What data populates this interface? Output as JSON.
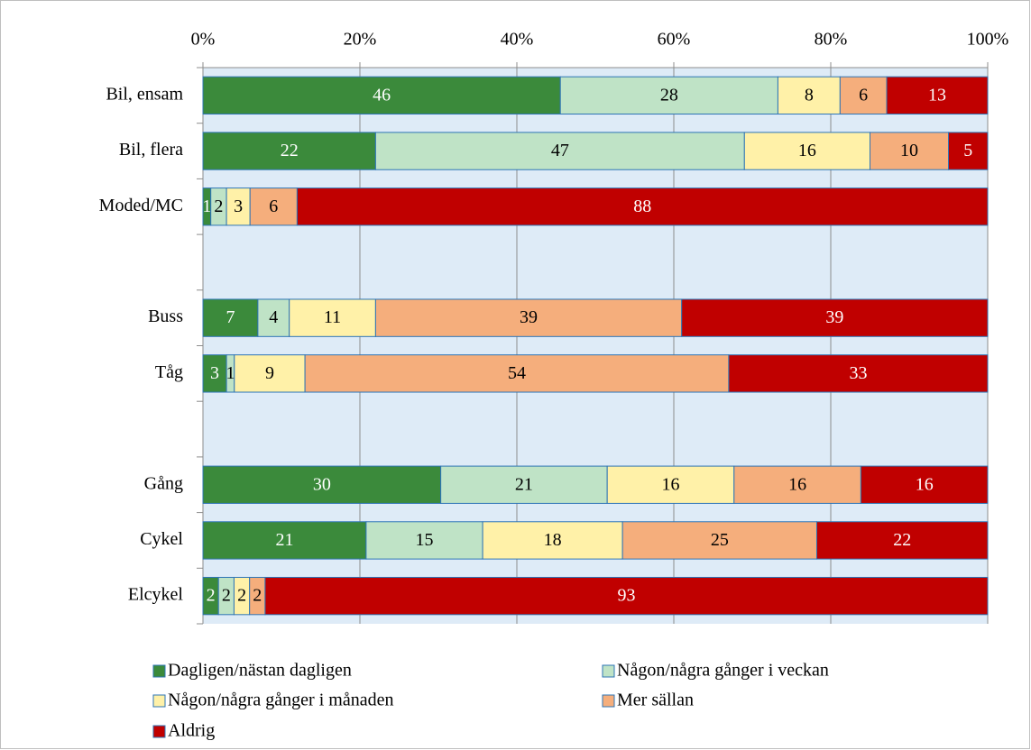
{
  "chart_data": {
    "type": "bar",
    "orientation": "horizontal",
    "stack": "percent",
    "categories": [
      "Bil, ensam",
      "Bil, flera",
      "Moded/MC",
      null,
      "Buss",
      "Tåg",
      null,
      "Gång",
      "Cykel",
      "Elcykel"
    ],
    "series": [
      {
        "name": "Dagligen/nästan dagligen",
        "color": "#3b8a3b",
        "values": [
          46,
          22,
          1,
          null,
          7,
          3,
          null,
          30,
          21,
          2
        ]
      },
      {
        "name": "Någon/några gånger i veckan",
        "color": "#bfe3c6",
        "values": [
          28,
          47,
          2,
          null,
          4,
          1,
          null,
          21,
          15,
          2
        ]
      },
      {
        "name": "Någon/några gånger i månaden",
        "color": "#fff1a8",
        "values": [
          8,
          16,
          3,
          null,
          11,
          9,
          null,
          16,
          18,
          2
        ]
      },
      {
        "name": "Mer sällan",
        "color": "#f5ae7c",
        "values": [
          6,
          10,
          6,
          null,
          39,
          54,
          null,
          16,
          25,
          2
        ]
      },
      {
        "name": "Aldrig",
        "color": "#c00000",
        "values": [
          13,
          5,
          88,
          null,
          39,
          33,
          null,
          16,
          22,
          93
        ]
      }
    ],
    "xlim": [
      0,
      100
    ],
    "xticks": [
      {
        "value": 0,
        "label": "0%"
      },
      {
        "value": 20,
        "label": "20%"
      },
      {
        "value": 40,
        "label": "40%"
      },
      {
        "value": 60,
        "label": "60%"
      },
      {
        "value": 80,
        "label": "80%"
      },
      {
        "value": 100,
        "label": "100%"
      }
    ],
    "grid": true
  }
}
